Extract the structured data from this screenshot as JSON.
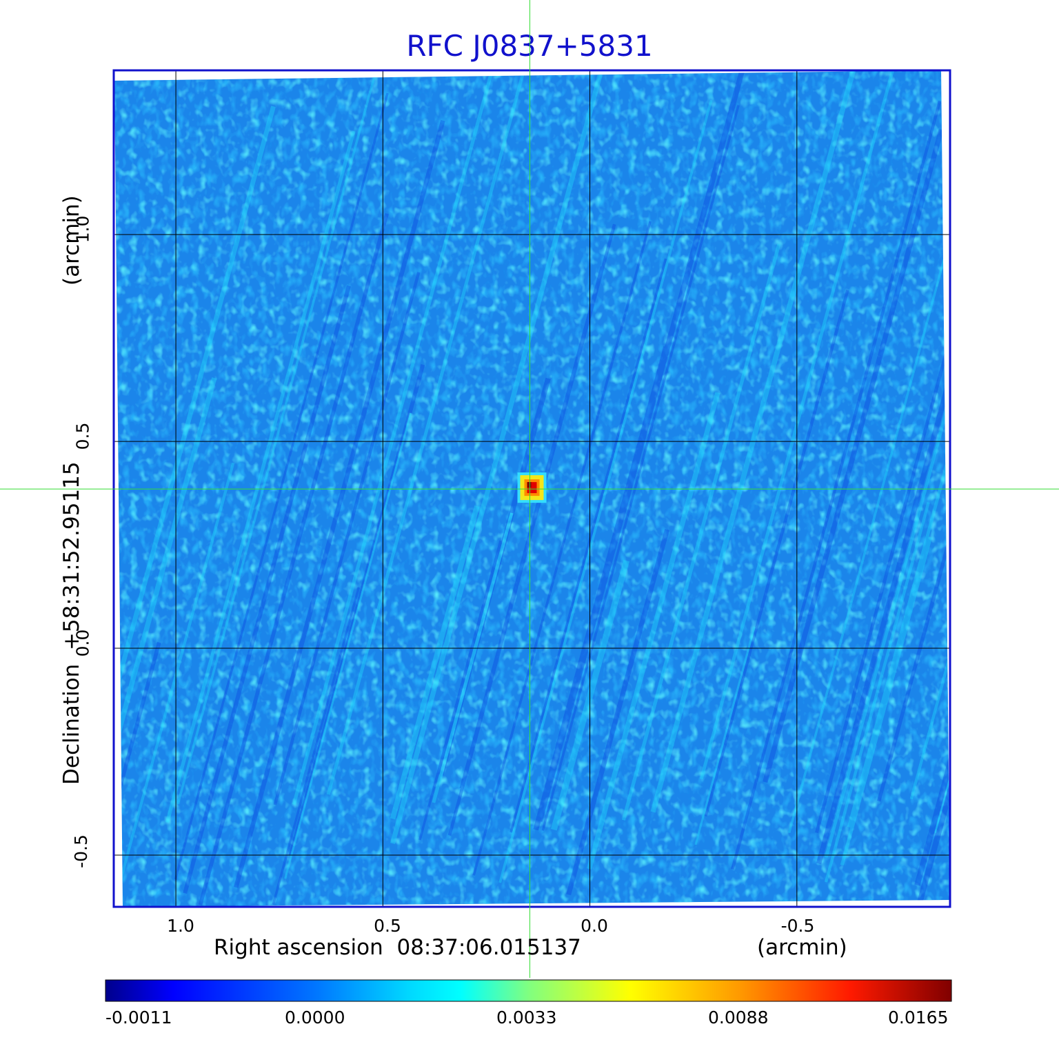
{
  "chart_data": {
    "type": "heatmap",
    "title": "RFC J0837+5831",
    "xlabel": "Right ascension  08:37:06.015137",
    "xunit": "(arcmin)",
    "ylabel": "Declination  +58:31:52.95115",
    "yunit": "(arcmin)",
    "x_ticks": [
      "1.0",
      "0.5",
      "0.0",
      "-0.5"
    ],
    "x_tick_values": [
      1.0,
      0.5,
      0.0,
      -0.5
    ],
    "y_ticks": [
      "1.0",
      "0.5",
      "0.0",
      "-0.5"
    ],
    "y_tick_values": [
      1.0,
      0.5,
      0.0,
      -0.5
    ],
    "xlim": [
      1.15,
      -0.87
    ],
    "ylim": [
      -0.625,
      1.397
    ],
    "grid": true,
    "crosshair": {
      "x": 0.145,
      "y": 0.385
    },
    "source_peak": {
      "x": 0.145,
      "y": 0.385,
      "value": 0.0165
    },
    "colorbar": {
      "ticks": [
        "-0.0011",
        "0.0000",
        "0.0033",
        "0.0088",
        "0.0165"
      ],
      "colors": [
        "#00008c",
        "#0000ff",
        "#0077ff",
        "#00ffff",
        "#80ff80",
        "#ffff00",
        "#ff8000",
        "#ff0000",
        "#800000"
      ]
    },
    "background_color": "#1b85ea"
  }
}
